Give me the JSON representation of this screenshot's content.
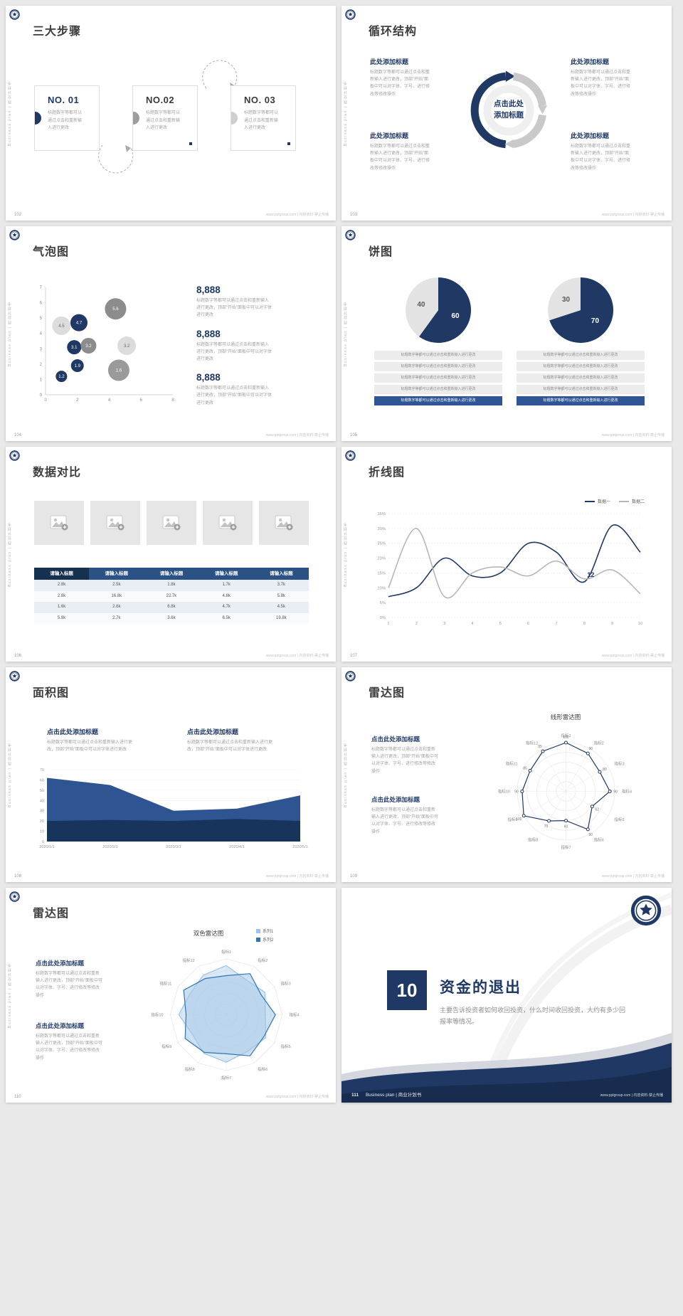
{
  "common": {
    "vertical_label": "Business plan | 商业计划书",
    "footer_site": "www.pptgroup.com | 内容资料·禁止传播",
    "click_title": "点击此处添加标题",
    "add_title": "此处添加标题",
    "body_short": "标题数字等都可以通过点击和重新输入进行更改",
    "body_medium": "标题数字等都可以通过点击和重新输入进行更改，顶部“开始”面板中可以对字体进行更改",
    "body_long": "标题数字等都可以通过点击和重新输入进行更改，顶部“开始”面板中可以对字体、字号、进行修改等修改操作"
  },
  "slides": {
    "s102": {
      "page": "102",
      "title": "三大步骤",
      "steps": [
        {
          "no": "NO. 01"
        },
        {
          "no": "NO.02"
        },
        {
          "no": "NO. 03"
        }
      ]
    },
    "s103": {
      "page": "103",
      "title": "循环结构",
      "center": "点击此处添加标题"
    },
    "s104": {
      "page": "104",
      "title": "气泡图",
      "stats": [
        {
          "value": "8,888"
        },
        {
          "value": "8,888"
        },
        {
          "value": "8,888"
        }
      ]
    },
    "s105": {
      "page": "105",
      "title": "饼图"
    },
    "s106": {
      "page": "106",
      "title": "数据对比",
      "table": {
        "headers": [
          "请输入标题",
          "请输入标题",
          "请输入标题",
          "请输入标题",
          "请输入标题"
        ],
        "rows": [
          [
            "2.8k",
            "2.5k",
            "1.8k",
            "1.7k",
            "3.7k"
          ],
          [
            "2.8k",
            "16.8k",
            "22.7k",
            "4.8k",
            "5.8k"
          ],
          [
            "1.6k",
            "2.6k",
            "6.8k",
            "4.7k",
            "4.5k"
          ],
          [
            "5.8k",
            "2.7k",
            "3.6k",
            "6.5k",
            "19.8k"
          ]
        ]
      }
    },
    "s107": {
      "page": "107",
      "title": "折线图"
    },
    "s108": {
      "page": "108",
      "title": "面积图"
    },
    "s109": {
      "page": "109",
      "title": "雷达图",
      "chart_title": "线形雷达图"
    },
    "s110": {
      "page": "110",
      "title": "雷达图",
      "chart_title": "双色雷达图",
      "legend": [
        {
          "label": "系列1",
          "color": "#9dc3e6"
        },
        {
          "label": "系列2",
          "color": "#2e75b6"
        }
      ]
    },
    "s111": {
      "page": "111",
      "number": "10",
      "title": "资金的退出",
      "desc": "主要告诉投资者如何收回投资，什么时间收回投资，大约有多少回报率等情况。",
      "footer_label": "Business plan | 商业计划书"
    }
  },
  "colors": {
    "navy": "#1f3864",
    "mid_blue": "#2f5597",
    "steel": "#5b9bd5",
    "light_blue": "#9dc3e6",
    "gray": "#b7b7b7"
  },
  "chart_data": [
    {
      "id": "bubble104",
      "type": "scatter",
      "xlim": [
        0,
        8
      ],
      "ylim": [
        0,
        7
      ],
      "xticks": [
        0,
        2,
        4,
        6,
        8
      ],
      "yticks": [
        0,
        1,
        2,
        3,
        4,
        5,
        6,
        7
      ],
      "points": [
        {
          "x": 1.0,
          "y": 4.5,
          "r": 13,
          "label": "4.5",
          "color": "#dcdcdc",
          "text_color": "#666666"
        },
        {
          "x": 2.1,
          "y": 4.7,
          "r": 12,
          "label": "4.7",
          "color": "#1f3864",
          "text_color": "#ffffff"
        },
        {
          "x": 4.4,
          "y": 5.6,
          "r": 15,
          "label": "5.6",
          "color": "#8c8c8c",
          "text_color": "#ffffff"
        },
        {
          "x": 1.8,
          "y": 3.1,
          "r": 10,
          "label": "3.1",
          "color": "#1f3864",
          "text_color": "#ffffff"
        },
        {
          "x": 2.7,
          "y": 3.2,
          "r": 11,
          "label": "3.2",
          "color": "#8c8c8c",
          "text_color": "#ffffff"
        },
        {
          "x": 5.1,
          "y": 3.2,
          "r": 13,
          "label": "3.2",
          "color": "#dcdcdc",
          "text_color": "#666666"
        },
        {
          "x": 2.0,
          "y": 1.9,
          "r": 9,
          "label": "1.9",
          "color": "#1f3864",
          "text_color": "#ffffff"
        },
        {
          "x": 1.0,
          "y": 1.2,
          "r": 8,
          "label": "1.2",
          "color": "#1f3864",
          "text_color": "#ffffff"
        },
        {
          "x": 4.6,
          "y": 1.6,
          "r": 15,
          "label": "1.6",
          "color": "#9a9a9a",
          "text_color": "#ffffff"
        }
      ]
    },
    {
      "id": "pie105a",
      "type": "pie",
      "slices": [
        {
          "value": 60,
          "label": "60",
          "color": "#1f3864",
          "label_color": "#ffffff"
        },
        {
          "value": 40,
          "label": "40",
          "color": "#e3e3e3",
          "label_color": "#595959"
        }
      ]
    },
    {
      "id": "pie105b",
      "type": "pie",
      "slices": [
        {
          "value": 70,
          "label": "70",
          "color": "#1f3864",
          "label_color": "#ffffff"
        },
        {
          "value": 30,
          "label": "30",
          "color": "#e3e3e3",
          "label_color": "#595959"
        }
      ]
    },
    {
      "id": "line107",
      "type": "line",
      "x": [
        1,
        2,
        3,
        4,
        5,
        6,
        7,
        8,
        9,
        10
      ],
      "ylim": [
        0,
        35
      ],
      "ytick_step": 5,
      "ytick_suffix": "%",
      "series": [
        {
          "name": "数据一",
          "color": "#1f3864",
          "values": [
            7,
            10,
            20,
            14,
            15,
            25,
            22,
            12,
            31,
            22
          ]
        },
        {
          "name": "数据二",
          "color": "#b7b7b7",
          "values": [
            10,
            30,
            7,
            15,
            17,
            14,
            19,
            13,
            16,
            8
          ]
        }
      ],
      "annotation": {
        "text": "12",
        "series": 0,
        "index": 7
      }
    },
    {
      "id": "area108",
      "type": "area",
      "x": [
        "2020/1/1",
        "2020/2/1",
        "2020/3/1",
        "2020/4/1",
        "2020/5/1"
      ],
      "ylim": [
        0,
        70
      ],
      "ytick_step": 10,
      "series": [
        {
          "name": "",
          "color": "#2e5591",
          "values": [
            62,
            55,
            30,
            32,
            45
          ]
        },
        {
          "name": "",
          "color": "#17355c",
          "values": [
            20,
            21,
            20,
            22,
            20
          ]
        }
      ]
    },
    {
      "id": "radar109",
      "type": "radar",
      "grid": "circle",
      "max": 100,
      "axes": [
        "指标1",
        "指标2",
        "指标3",
        "指标4",
        "指标5",
        "指标6",
        "指标7",
        "指标8",
        "指标9",
        "指标10",
        "指标11",
        "指标12"
      ],
      "series": [
        {
          "name": "",
          "stroke": "#1f3864",
          "fill": "none",
          "marker": true,
          "show_values": true,
          "values": [
            100,
            90,
            80,
            90,
            62,
            90,
            60,
            70,
            100,
            90,
            85,
            95
          ]
        }
      ]
    },
    {
      "id": "radar110",
      "type": "radar",
      "grid": "polygon",
      "max": 100,
      "axes": [
        "指标1",
        "指标2",
        "指标3",
        "指标4",
        "指标5",
        "指标6",
        "指标7",
        "指标8",
        "指标9",
        "指标10",
        "指标11",
        "指标12"
      ],
      "series": [
        {
          "name": "系列1",
          "stroke": "#9dc3e6",
          "fill": "rgba(189,215,238,0.55)",
          "values": [
            88,
            72,
            80,
            70,
            82,
            76,
            85,
            80,
            70,
            85,
            75,
            82
          ]
        },
        {
          "name": "系列2",
          "stroke": "#2e75b6",
          "fill": "rgba(157,195,230,0.5)",
          "values": [
            70,
            85,
            72,
            88,
            78,
            85,
            70,
            78,
            85,
            72,
            88,
            75
          ]
        }
      ]
    }
  ]
}
